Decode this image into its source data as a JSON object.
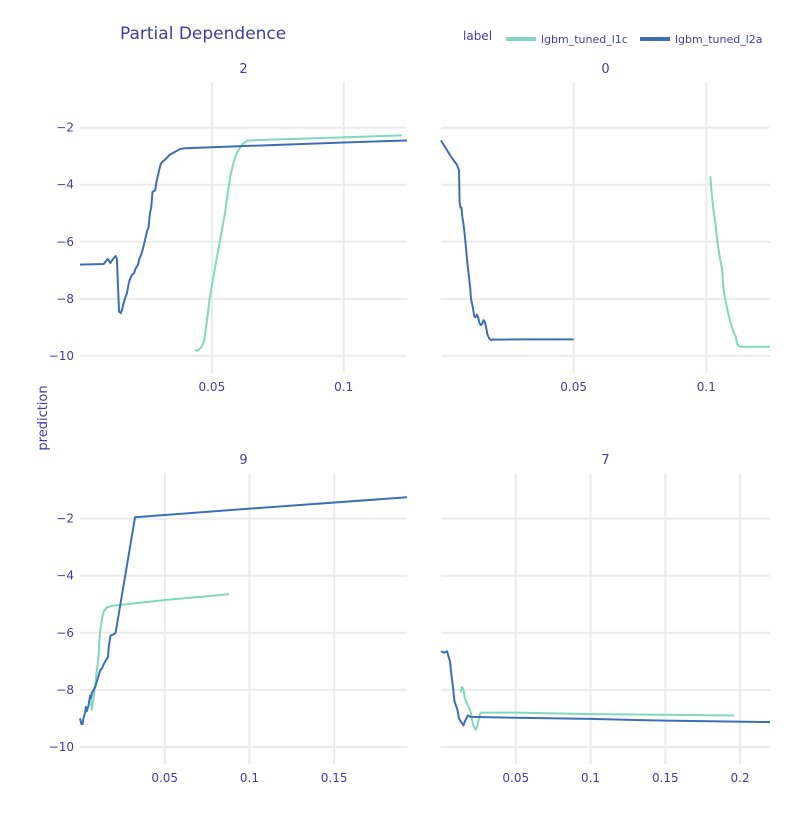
{
  "colors": {
    "lgbm_tuned_l1c": "#80d9be",
    "lgbm_tuned_l2a": "#3d6fb6",
    "text": "#3f3ca8",
    "grid": "#ebebeb"
  },
  "chart_data": {
    "type": "line",
    "title": "Partial Dependence",
    "ylabel": "prediction",
    "legend": {
      "title": "label",
      "position": "top-right",
      "entries": [
        "lgbm_tuned_l1c",
        "lgbm_tuned_l2a"
      ]
    },
    "panels": [
      {
        "title": "2",
        "xlim": [
          0.0,
          0.124
        ],
        "ylim": [
          -10.6,
          -0.4
        ],
        "xticks": [
          0.05,
          0.1
        ],
        "xtick_labels": [
          "0.05",
          "0.1"
        ],
        "yticks": [
          -2,
          -4,
          -6,
          -8,
          -10
        ],
        "ytick_labels": [
          "−2",
          "−4",
          "−6",
          "−8",
          "−10"
        ],
        "series": [
          {
            "name": "lgbm_tuned_l1c",
            "points": [
              [
                0.0435,
                -9.8
              ],
              [
                0.0445,
                -9.82
              ],
              [
                0.046,
                -9.7
              ],
              [
                0.047,
                -9.5
              ],
              [
                0.0478,
                -9.0
              ],
              [
                0.0485,
                -8.5
              ],
              [
                0.049,
                -8.1
              ],
              [
                0.0497,
                -7.7
              ],
              [
                0.0505,
                -7.3
              ],
              [
                0.051,
                -7.0
              ],
              [
                0.052,
                -6.5
              ],
              [
                0.053,
                -6.0
              ],
              [
                0.054,
                -5.5
              ],
              [
                0.055,
                -5.0
              ],
              [
                0.0557,
                -4.5
              ],
              [
                0.0565,
                -4.0
              ],
              [
                0.057,
                -3.7
              ],
              [
                0.058,
                -3.3
              ],
              [
                0.059,
                -3.0
              ],
              [
                0.06,
                -2.8
              ],
              [
                0.061,
                -2.65
              ],
              [
                0.062,
                -2.55
              ],
              [
                0.0635,
                -2.45
              ],
              [
                0.08,
                -2.4
              ],
              [
                0.1,
                -2.34
              ],
              [
                0.122,
                -2.27
              ]
            ]
          },
          {
            "name": "lgbm_tuned_l2a",
            "points": [
              [
                0.0,
                -6.8
              ],
              [
                0.005,
                -6.79
              ],
              [
                0.009,
                -6.78
              ],
              [
                0.0105,
                -6.6
              ],
              [
                0.0115,
                -6.75
              ],
              [
                0.0125,
                -6.6
              ],
              [
                0.0135,
                -6.5
              ],
              [
                0.014,
                -6.6
              ],
              [
                0.0148,
                -8.45
              ],
              [
                0.0155,
                -8.5
              ],
              [
                0.016,
                -8.35
              ],
              [
                0.017,
                -8.0
              ],
              [
                0.0178,
                -7.8
              ],
              [
                0.0185,
                -7.45
              ],
              [
                0.019,
                -7.3
              ],
              [
                0.0198,
                -7.15
              ],
              [
                0.0205,
                -7.1
              ],
              [
                0.021,
                -6.95
              ],
              [
                0.022,
                -6.8
              ],
              [
                0.0225,
                -6.6
              ],
              [
                0.023,
                -6.5
              ],
              [
                0.0237,
                -6.3
              ],
              [
                0.0245,
                -6.0
              ],
              [
                0.025,
                -5.8
              ],
              [
                0.0255,
                -5.6
              ],
              [
                0.026,
                -5.5
              ],
              [
                0.0265,
                -5.0
              ],
              [
                0.027,
                -4.8
              ],
              [
                0.0275,
                -4.25
              ],
              [
                0.0285,
                -4.2
              ],
              [
                0.029,
                -3.9
              ],
              [
                0.0295,
                -3.7
              ],
              [
                0.03,
                -3.5
              ],
              [
                0.0305,
                -3.3
              ],
              [
                0.031,
                -3.22
              ],
              [
                0.0325,
                -3.1
              ],
              [
                0.034,
                -2.95
              ],
              [
                0.036,
                -2.85
              ],
              [
                0.038,
                -2.75
              ],
              [
                0.04,
                -2.72
              ],
              [
                0.07,
                -2.62
              ],
              [
                0.1,
                -2.52
              ],
              [
                0.124,
                -2.45
              ]
            ]
          }
        ]
      },
      {
        "title": "0",
        "xlim": [
          0.0,
          0.124
        ],
        "ylim": [
          -10.6,
          -0.4
        ],
        "xticks": [
          0.05,
          0.1
        ],
        "xtick_labels": [
          "0.05",
          "0.1"
        ],
        "yticks": [
          -2,
          -4,
          -6,
          -8,
          -10
        ],
        "ytick_labels": [
          "−2",
          "−4",
          "−6",
          "−8",
          "−10"
        ],
        "series": [
          {
            "name": "lgbm_tuned_l1c",
            "points": [
              [
                0.1015,
                -3.7
              ],
              [
                0.102,
                -4.3
              ],
              [
                0.1027,
                -4.9
              ],
              [
                0.1035,
                -5.4
              ],
              [
                0.104,
                -5.9
              ],
              [
                0.105,
                -6.5
              ],
              [
                0.106,
                -7.0
              ],
              [
                0.1063,
                -7.5
              ],
              [
                0.1067,
                -7.8
              ],
              [
                0.1073,
                -8.1
              ],
              [
                0.108,
                -8.4
              ],
              [
                0.109,
                -8.8
              ],
              [
                0.11,
                -9.1
              ],
              [
                0.111,
                -9.3
              ],
              [
                0.1117,
                -9.6
              ],
              [
                0.1125,
                -9.67
              ],
              [
                0.115,
                -9.68
              ],
              [
                0.124,
                -9.68
              ]
            ]
          },
          {
            "name": "lgbm_tuned_l2a",
            "points": [
              [
                0.0,
                -2.45
              ],
              [
                0.002,
                -2.75
              ],
              [
                0.004,
                -3.05
              ],
              [
                0.006,
                -3.3
              ],
              [
                0.0068,
                -3.5
              ],
              [
                0.007,
                -4.6
              ],
              [
                0.0073,
                -4.8
              ],
              [
                0.0077,
                -4.8
              ],
              [
                0.008,
                -5.1
              ],
              [
                0.0085,
                -5.4
              ],
              [
                0.009,
                -5.8
              ],
              [
                0.0095,
                -6.3
              ],
              [
                0.01,
                -6.8
              ],
              [
                0.0105,
                -7.2
              ],
              [
                0.011,
                -7.6
              ],
              [
                0.0113,
                -8.0
              ],
              [
                0.012,
                -8.3
              ],
              [
                0.0125,
                -8.6
              ],
              [
                0.013,
                -8.65
              ],
              [
                0.0135,
                -8.55
              ],
              [
                0.014,
                -8.65
              ],
              [
                0.0145,
                -8.85
              ],
              [
                0.015,
                -8.92
              ],
              [
                0.0155,
                -8.88
              ],
              [
                0.016,
                -8.75
              ],
              [
                0.0165,
                -8.8
              ],
              [
                0.017,
                -9.0
              ],
              [
                0.0175,
                -9.25
              ],
              [
                0.0182,
                -9.4
              ],
              [
                0.019,
                -9.45
              ],
              [
                0.0195,
                -9.42
              ],
              [
                0.02,
                -9.43
              ],
              [
                0.03,
                -9.42
              ],
              [
                0.05,
                -9.42
              ]
            ]
          }
        ]
      },
      {
        "title": "9",
        "xlim": [
          0.0,
          0.193
        ],
        "ylim": [
          -10.6,
          -0.4
        ],
        "xticks": [
          0.05,
          0.1,
          0.15
        ],
        "xtick_labels": [
          "0.05",
          "0.1",
          "0.15"
        ],
        "yticks": [
          -2,
          -4,
          -6,
          -8,
          -10
        ],
        "ytick_labels": [
          "−2",
          "−4",
          "−6",
          "−8",
          "−10"
        ],
        "series": [
          {
            "name": "lgbm_tuned_l1c",
            "points": [
              [
                0.006,
                -8.2
              ],
              [
                0.007,
                -8.7
              ],
              [
                0.008,
                -8.3
              ],
              [
                0.009,
                -7.8
              ],
              [
                0.01,
                -7.3
              ],
              [
                0.011,
                -6.8
              ],
              [
                0.0115,
                -6.2
              ],
              [
                0.012,
                -5.9
              ],
              [
                0.013,
                -5.5
              ],
              [
                0.014,
                -5.25
              ],
              [
                0.016,
                -5.1
              ],
              [
                0.02,
                -5.05
              ],
              [
                0.05,
                -4.85
              ],
              [
                0.088,
                -4.65
              ]
            ]
          },
          {
            "name": "lgbm_tuned_l2a",
            "points": [
              [
                0.0,
                -9.0
              ],
              [
                0.0008,
                -9.2
              ],
              [
                0.0015,
                -9.2
              ],
              [
                0.002,
                -9.0
              ],
              [
                0.003,
                -8.8
              ],
              [
                0.0035,
                -8.6
              ],
              [
                0.004,
                -8.75
              ],
              [
                0.005,
                -8.55
              ],
              [
                0.006,
                -8.2
              ],
              [
                0.0065,
                -8.3
              ],
              [
                0.007,
                -8.1
              ],
              [
                0.008,
                -8.0
              ],
              [
                0.009,
                -7.9
              ],
              [
                0.0095,
                -7.8
              ],
              [
                0.011,
                -7.5
              ],
              [
                0.012,
                -7.3
              ],
              [
                0.013,
                -7.25
              ],
              [
                0.014,
                -7.1
              ],
              [
                0.015,
                -7.0
              ],
              [
                0.0165,
                -6.85
              ],
              [
                0.017,
                -6.5
              ],
              [
                0.018,
                -6.1
              ],
              [
                0.02,
                -6.05
              ],
              [
                0.021,
                -6.0
              ],
              [
                0.0325,
                -1.95
              ],
              [
                0.1,
                -1.65
              ],
              [
                0.193,
                -1.25
              ]
            ]
          }
        ]
      },
      {
        "title": "7",
        "xlim": [
          0.0,
          0.22
        ],
        "ylim": [
          -10.6,
          -0.4
        ],
        "xticks": [
          0.05,
          0.1,
          0.15,
          0.2
        ],
        "xtick_labels": [
          "0.05",
          "0.1",
          "0.15",
          "0.2"
        ],
        "yticks": [
          -2,
          -4,
          -6,
          -8,
          -10
        ],
        "ytick_labels": [
          "−2",
          "−4",
          "−6",
          "−8",
          "−10"
        ],
        "series": [
          {
            "name": "lgbm_tuned_l1c",
            "points": [
              [
                0.013,
                -8.1
              ],
              [
                0.014,
                -7.9
              ],
              [
                0.015,
                -8.0
              ],
              [
                0.016,
                -8.3
              ],
              [
                0.018,
                -8.55
              ],
              [
                0.019,
                -8.65
              ],
              [
                0.02,
                -8.8
              ],
              [
                0.0213,
                -9.2
              ],
              [
                0.023,
                -9.4
              ],
              [
                0.024,
                -9.3
              ],
              [
                0.025,
                -9.1
              ],
              [
                0.026,
                -8.85
              ],
              [
                0.027,
                -8.8
              ],
              [
                0.05,
                -8.8
              ],
              [
                0.1,
                -8.85
              ],
              [
                0.196,
                -8.9
              ]
            ]
          },
          {
            "name": "lgbm_tuned_l2a",
            "points": [
              [
                0.0,
                -6.65
              ],
              [
                0.002,
                -6.7
              ],
              [
                0.004,
                -6.65
              ],
              [
                0.006,
                -7.0
              ],
              [
                0.007,
                -7.5
              ],
              [
                0.008,
                -7.9
              ],
              [
                0.009,
                -8.4
              ],
              [
                0.01,
                -8.55
              ],
              [
                0.011,
                -8.7
              ],
              [
                0.012,
                -9.0
              ],
              [
                0.013,
                -9.1
              ],
              [
                0.0145,
                -9.2
              ],
              [
                0.015,
                -9.25
              ],
              [
                0.016,
                -9.1
              ],
              [
                0.0175,
                -8.95
              ],
              [
                0.018,
                -8.9
              ],
              [
                0.02,
                -8.95
              ],
              [
                0.05,
                -8.98
              ],
              [
                0.1,
                -9.02
              ],
              [
                0.15,
                -9.08
              ],
              [
                0.22,
                -9.13
              ]
            ]
          }
        ]
      }
    ]
  }
}
